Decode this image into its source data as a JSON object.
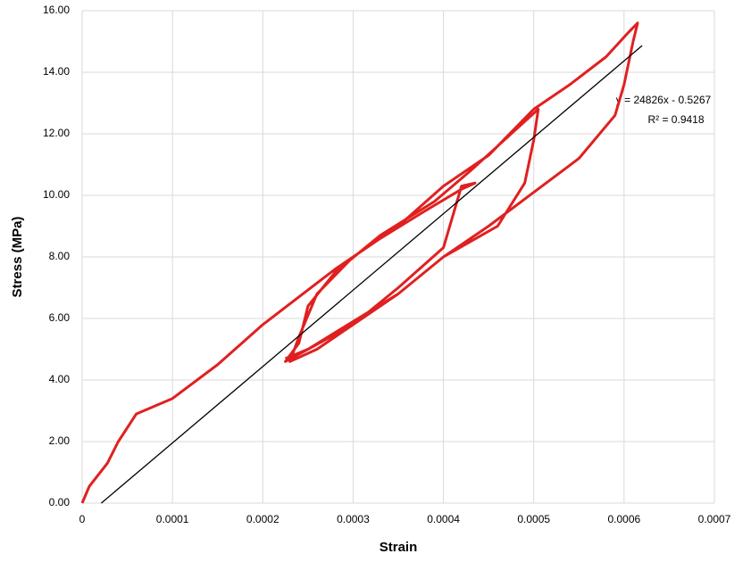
{
  "chart_data": {
    "type": "line",
    "xlabel": "Strain",
    "ylabel": "Stress (MPa)",
    "annotations": [
      "y = 24826x - 0.5267",
      "R² = 0.9418"
    ],
    "xlim": [
      0,
      0.0007
    ],
    "xticks": [
      0,
      0.0001,
      0.0002,
      0.0003,
      0.0004,
      0.0005,
      0.0006,
      0.0007
    ],
    "ylim": [
      0,
      16
    ],
    "yticks": [
      {
        "value": 0,
        "label": "0.00"
      },
      {
        "value": 2,
        "label": "2.00"
      },
      {
        "value": 4,
        "label": "4.00"
      },
      {
        "value": 6,
        "label": "6.00"
      },
      {
        "value": 8,
        "label": "8.00"
      },
      {
        "value": 10,
        "label": "10.00"
      },
      {
        "value": 12,
        "label": "12.00"
      },
      {
        "value": 14,
        "label": "14.00"
      },
      {
        "value": 16,
        "label": "16.00"
      }
    ],
    "grid": true,
    "series": [
      {
        "color": "#e02020",
        "x": [
          0,
          8e-06,
          2.8e-05,
          4e-05,
          6e-05,
          0.0001,
          0.00015,
          0.0002,
          0.00024,
          0.00028,
          0.00033,
          0.00038,
          0.00042,
          0.000435,
          0.00042,
          0.00041,
          0.0004,
          0.00035,
          0.0003,
          0.00025,
          0.000225,
          0.00024,
          0.00025,
          0.00028,
          0.00033,
          0.00039,
          0.00043,
          0.00046,
          0.00049,
          0.000505,
          0.0005,
          0.00049,
          0.00046,
          0.0004,
          0.00035,
          0.0003,
          0.00026,
          0.00023,
          0.00024,
          0.00026,
          0.0003,
          0.00035,
          0.0004,
          0.00045,
          0.0005,
          0.00054,
          0.00058,
          0.000605,
          0.000615,
          0.00061,
          0.0006,
          0.00059,
          0.00055,
          0.0005,
          0.00045,
          0.0004,
          0.00035,
          0.0003,
          0.00025,
          0.000225
        ],
        "values": [
          0,
          0.55,
          1.3,
          2.0,
          2.9,
          3.4,
          4.5,
          5.8,
          6.7,
          7.6,
          8.6,
          9.5,
          10.2,
          10.4,
          10.3,
          9.3,
          8.3,
          7.0,
          5.8,
          5.0,
          4.6,
          5.2,
          6.4,
          7.5,
          8.7,
          9.8,
          10.8,
          11.6,
          12.4,
          12.8,
          11.8,
          10.4,
          9.0,
          8.0,
          6.8,
          5.8,
          5.0,
          4.6,
          5.4,
          6.8,
          8.0,
          9.0,
          10.3,
          11.3,
          12.8,
          13.6,
          14.5,
          15.3,
          15.6,
          15.0,
          13.6,
          12.6,
          11.2,
          10.1,
          9.0,
          8.0,
          6.8,
          5.9,
          5.0,
          4.7
        ]
      },
      {
        "color": "#000000",
        "x": [
          2.12e-05,
          0.00062
        ],
        "values": [
          0,
          14.865
        ]
      }
    ]
  }
}
